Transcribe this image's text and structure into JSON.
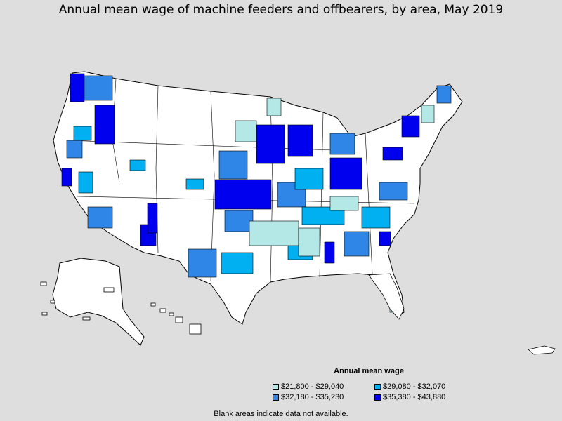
{
  "title": "Annual mean wage of machine feeders and offbearers, by area, May 2019",
  "legend": {
    "title": "Annual mean wage",
    "items": [
      {
        "label": "$21,800 - $29,040",
        "color": "#b3e8e6"
      },
      {
        "label": "$29,080 - $32,070",
        "color": "#00b0f0"
      },
      {
        "label": "$32,180 - $35,230",
        "color": "#2f86e6"
      },
      {
        "label": "$35,380 - $43,880",
        "color": "#0000ee"
      }
    ]
  },
  "footnote": "Blank areas indicate data not available.",
  "colors": {
    "background": "#dedede",
    "blank": "#ffffff",
    "border": "#000000"
  }
}
